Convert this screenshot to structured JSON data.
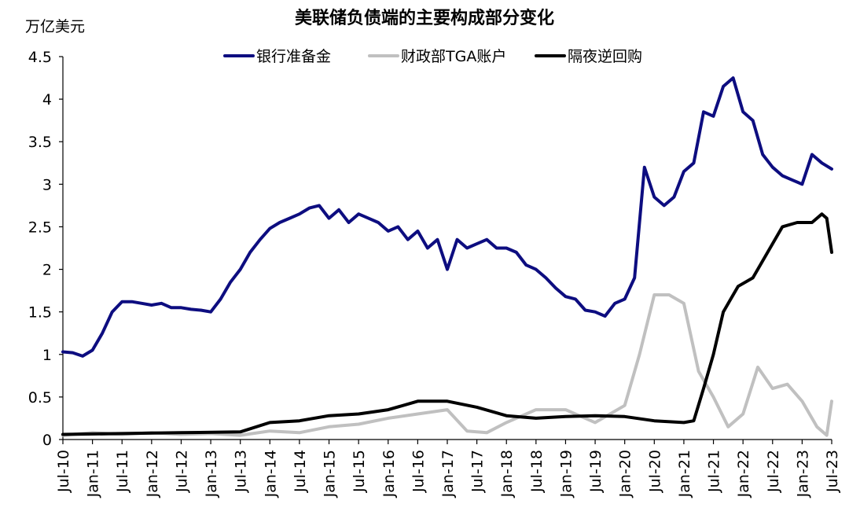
{
  "chart_data": {
    "type": "line",
    "title": "美联储负债端的主要构成部分变化",
    "unit_label": "万亿美元",
    "y_ticks": [
      "0",
      "0.5",
      "1",
      "1.5",
      "2",
      "2.5",
      "3",
      "3.5",
      "4",
      "4.5"
    ],
    "ylim": [
      0,
      4.5
    ],
    "x_range": [
      "2010-07",
      "2023-07"
    ],
    "x_tick_labels": [
      "Jul-10",
      "Jan-11",
      "Jul-11",
      "Jan-12",
      "Jul-12",
      "Jan-13",
      "Jul-13",
      "Jan-14",
      "Jul-14",
      "Jan-15",
      "Jul-15",
      "Jan-16",
      "Jul-16",
      "Jan-17",
      "Jul-17",
      "Jan-18",
      "Jul-18",
      "Jan-19",
      "Jul-19",
      "Jan-20",
      "Jul-20",
      "Jan-21",
      "Jul-21",
      "Jan-22",
      "Jul-22",
      "Jan-23",
      "Jul-23"
    ],
    "grid": false,
    "legend_position": "top",
    "series": [
      {
        "name": "银行准备金",
        "color": "#0d0d80",
        "points": [
          [
            "2010-07",
            1.03
          ],
          [
            "2010-09",
            1.02
          ],
          [
            "2010-11",
            0.98
          ],
          [
            "2011-01",
            1.05
          ],
          [
            "2011-03",
            1.25
          ],
          [
            "2011-05",
            1.5
          ],
          [
            "2011-07",
            1.62
          ],
          [
            "2011-09",
            1.62
          ],
          [
            "2011-11",
            1.6
          ],
          [
            "2012-01",
            1.58
          ],
          [
            "2012-03",
            1.6
          ],
          [
            "2012-05",
            1.55
          ],
          [
            "2012-07",
            1.55
          ],
          [
            "2012-09",
            1.53
          ],
          [
            "2012-11",
            1.52
          ],
          [
            "2013-01",
            1.5
          ],
          [
            "2013-03",
            1.65
          ],
          [
            "2013-05",
            1.85
          ],
          [
            "2013-07",
            2.0
          ],
          [
            "2013-09",
            2.2
          ],
          [
            "2013-11",
            2.35
          ],
          [
            "2014-01",
            2.48
          ],
          [
            "2014-03",
            2.55
          ],
          [
            "2014-05",
            2.6
          ],
          [
            "2014-07",
            2.65
          ],
          [
            "2014-09",
            2.72
          ],
          [
            "2014-11",
            2.75
          ],
          [
            "2015-01",
            2.6
          ],
          [
            "2015-03",
            2.7
          ],
          [
            "2015-05",
            2.55
          ],
          [
            "2015-07",
            2.65
          ],
          [
            "2015-09",
            2.6
          ],
          [
            "2015-11",
            2.55
          ],
          [
            "2016-01",
            2.45
          ],
          [
            "2016-03",
            2.5
          ],
          [
            "2016-05",
            2.35
          ],
          [
            "2016-07",
            2.45
          ],
          [
            "2016-09",
            2.25
          ],
          [
            "2016-11",
            2.35
          ],
          [
            "2017-01",
            2.0
          ],
          [
            "2017-03",
            2.35
          ],
          [
            "2017-05",
            2.25
          ],
          [
            "2017-07",
            2.3
          ],
          [
            "2017-09",
            2.35
          ],
          [
            "2017-11",
            2.25
          ],
          [
            "2018-01",
            2.25
          ],
          [
            "2018-03",
            2.2
          ],
          [
            "2018-05",
            2.05
          ],
          [
            "2018-07",
            2.0
          ],
          [
            "2018-09",
            1.9
          ],
          [
            "2018-11",
            1.78
          ],
          [
            "2019-01",
            1.68
          ],
          [
            "2019-03",
            1.65
          ],
          [
            "2019-05",
            1.52
          ],
          [
            "2019-07",
            1.5
          ],
          [
            "2019-09",
            1.45
          ],
          [
            "2019-11",
            1.6
          ],
          [
            "2020-01",
            1.65
          ],
          [
            "2020-03",
            1.9
          ],
          [
            "2020-05",
            3.2
          ],
          [
            "2020-07",
            2.85
          ],
          [
            "2020-09",
            2.75
          ],
          [
            "2020-11",
            2.85
          ],
          [
            "2021-01",
            3.15
          ],
          [
            "2021-03",
            3.25
          ],
          [
            "2021-05",
            3.85
          ],
          [
            "2021-07",
            3.8
          ],
          [
            "2021-09",
            4.15
          ],
          [
            "2021-11",
            4.25
          ],
          [
            "2022-01",
            3.85
          ],
          [
            "2022-03",
            3.75
          ],
          [
            "2022-05",
            3.35
          ],
          [
            "2022-07",
            3.2
          ],
          [
            "2022-09",
            3.1
          ],
          [
            "2022-11",
            3.05
          ],
          [
            "2023-01",
            3.0
          ],
          [
            "2023-03",
            3.35
          ],
          [
            "2023-05",
            3.25
          ],
          [
            "2023-07",
            3.18
          ]
        ]
      },
      {
        "name": "财政部TGA账户",
        "color": "#c0c0c0",
        "points": [
          [
            "2010-07",
            0.05
          ],
          [
            "2011-01",
            0.08
          ],
          [
            "2011-07",
            0.06
          ],
          [
            "2012-01",
            0.08
          ],
          [
            "2012-07",
            0.06
          ],
          [
            "2013-01",
            0.07
          ],
          [
            "2013-07",
            0.05
          ],
          [
            "2014-01",
            0.1
          ],
          [
            "2014-07",
            0.08
          ],
          [
            "2015-01",
            0.15
          ],
          [
            "2015-07",
            0.18
          ],
          [
            "2016-01",
            0.25
          ],
          [
            "2016-07",
            0.3
          ],
          [
            "2017-01",
            0.35
          ],
          [
            "2017-05",
            0.1
          ],
          [
            "2017-09",
            0.08
          ],
          [
            "2018-01",
            0.2
          ],
          [
            "2018-07",
            0.35
          ],
          [
            "2019-01",
            0.35
          ],
          [
            "2019-07",
            0.2
          ],
          [
            "2020-01",
            0.4
          ],
          [
            "2020-04",
            1.0
          ],
          [
            "2020-07",
            1.7
          ],
          [
            "2020-10",
            1.7
          ],
          [
            "2021-01",
            1.6
          ],
          [
            "2021-04",
            0.8
          ],
          [
            "2021-07",
            0.5
          ],
          [
            "2021-10",
            0.15
          ],
          [
            "2022-01",
            0.3
          ],
          [
            "2022-04",
            0.85
          ],
          [
            "2022-07",
            0.6
          ],
          [
            "2022-10",
            0.65
          ],
          [
            "2023-01",
            0.45
          ],
          [
            "2023-04",
            0.15
          ],
          [
            "2023-06",
            0.05
          ],
          [
            "2023-07",
            0.45
          ]
        ]
      },
      {
        "name": "隔夜逆回购",
        "color": "#000000",
        "points": [
          [
            "2010-07",
            0.06
          ],
          [
            "2011-07",
            0.07
          ],
          [
            "2012-07",
            0.08
          ],
          [
            "2013-07",
            0.09
          ],
          [
            "2014-01",
            0.2
          ],
          [
            "2014-07",
            0.22
          ],
          [
            "2015-01",
            0.28
          ],
          [
            "2015-07",
            0.3
          ],
          [
            "2016-01",
            0.35
          ],
          [
            "2016-07",
            0.45
          ],
          [
            "2017-01",
            0.45
          ],
          [
            "2017-07",
            0.38
          ],
          [
            "2018-01",
            0.28
          ],
          [
            "2018-07",
            0.25
          ],
          [
            "2019-01",
            0.27
          ],
          [
            "2019-07",
            0.28
          ],
          [
            "2020-01",
            0.27
          ],
          [
            "2020-07",
            0.22
          ],
          [
            "2021-01",
            0.2
          ],
          [
            "2021-03",
            0.22
          ],
          [
            "2021-05",
            0.6
          ],
          [
            "2021-07",
            1.0
          ],
          [
            "2021-09",
            1.5
          ],
          [
            "2021-12",
            1.8
          ],
          [
            "2022-03",
            1.9
          ],
          [
            "2022-06",
            2.2
          ],
          [
            "2022-09",
            2.5
          ],
          [
            "2022-12",
            2.55
          ],
          [
            "2023-03",
            2.55
          ],
          [
            "2023-05",
            2.65
          ],
          [
            "2023-06",
            2.6
          ],
          [
            "2023-07",
            2.2
          ]
        ]
      }
    ]
  }
}
